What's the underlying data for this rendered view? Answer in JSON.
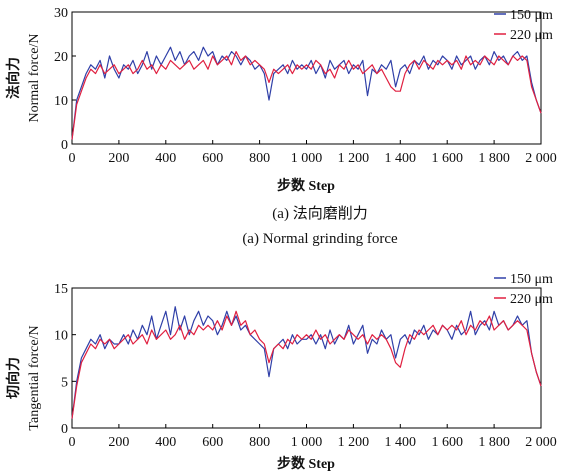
{
  "chart_data": [
    {
      "type": "line",
      "xlabel": "步数  Step",
      "ylabel_cn": "法向力",
      "ylabel_en": "Normal force/N",
      "caption_cn": "(a) 法向磨削力",
      "caption_en": "(a) Normal grinding force",
      "xlim": [
        0,
        2000
      ],
      "ylim": [
        0,
        30
      ],
      "xticks": [
        0,
        200,
        400,
        600,
        800,
        1000,
        1200,
        1400,
        1600,
        1800,
        2000
      ],
      "xtick_labels": [
        "0",
        "200",
        "400",
        "600",
        "800",
        "1 000",
        "1 200",
        "1 400",
        "1 600",
        "1 800",
        "2 000"
      ],
      "yticks": [
        0,
        10,
        20,
        30
      ],
      "ytick_labels": [
        "0",
        "10",
        "20",
        "30"
      ],
      "legend_position": "top-right",
      "grid": false,
      "series": [
        {
          "name": "150 μm",
          "color": "#3040a8",
          "x": [
            0,
            20,
            40,
            60,
            80,
            100,
            120,
            140,
            160,
            180,
            200,
            220,
            240,
            260,
            280,
            300,
            320,
            340,
            360,
            380,
            400,
            420,
            440,
            460,
            480,
            500,
            520,
            540,
            560,
            580,
            600,
            620,
            640,
            660,
            680,
            700,
            720,
            740,
            760,
            780,
            800,
            820,
            840,
            860,
            880,
            900,
            920,
            940,
            960,
            980,
            1000,
            1020,
            1040,
            1060,
            1080,
            1100,
            1120,
            1140,
            1160,
            1180,
            1200,
            1220,
            1240,
            1260,
            1280,
            1300,
            1320,
            1340,
            1360,
            1380,
            1400,
            1420,
            1440,
            1460,
            1480,
            1500,
            1520,
            1540,
            1560,
            1580,
            1600,
            1620,
            1640,
            1660,
            1680,
            1700,
            1720,
            1740,
            1760,
            1780,
            1800,
            1820,
            1840,
            1860,
            1880,
            1900,
            1920,
            1940,
            1960,
            1980,
            2000
          ],
          "values": [
            1,
            10,
            13,
            16,
            18,
            17,
            19,
            15,
            20,
            17,
            15,
            18,
            17,
            19,
            16,
            18,
            21,
            17,
            20,
            18,
            20,
            22,
            19,
            21,
            18,
            20,
            21,
            19,
            22,
            20,
            21,
            18,
            20,
            19,
            21,
            20,
            18,
            20,
            19,
            17,
            18,
            16,
            10,
            16,
            17,
            18,
            16,
            19,
            17,
            18,
            17,
            19,
            16,
            18,
            15,
            19,
            17,
            18,
            19,
            16,
            18,
            17,
            19,
            11,
            17,
            16,
            18,
            17,
            19,
            13,
            17,
            18,
            16,
            19,
            18,
            20,
            17,
            19,
            18,
            20,
            19,
            17,
            20,
            18,
            19,
            20,
            17,
            19,
            20,
            18,
            21,
            19,
            20,
            18,
            20,
            21,
            19,
            20,
            14,
            10,
            7
          ]
        },
        {
          "name": "220 μm",
          "color": "#e02040",
          "x": [
            0,
            20,
            40,
            60,
            80,
            100,
            120,
            140,
            160,
            180,
            200,
            220,
            240,
            260,
            280,
            300,
            320,
            340,
            360,
            380,
            400,
            420,
            440,
            460,
            480,
            500,
            520,
            540,
            560,
            580,
            600,
            620,
            640,
            660,
            680,
            700,
            720,
            740,
            760,
            780,
            800,
            820,
            840,
            860,
            880,
            900,
            920,
            940,
            960,
            980,
            1000,
            1020,
            1040,
            1060,
            1080,
            1100,
            1120,
            1140,
            1160,
            1180,
            1200,
            1220,
            1240,
            1260,
            1280,
            1300,
            1320,
            1340,
            1360,
            1380,
            1400,
            1420,
            1440,
            1460,
            1480,
            1500,
            1520,
            1540,
            1560,
            1580,
            1600,
            1620,
            1640,
            1660,
            1680,
            1700,
            1720,
            1740,
            1760,
            1780,
            1800,
            1820,
            1840,
            1860,
            1880,
            1900,
            1920,
            1940,
            1960,
            1980,
            2000
          ],
          "values": [
            1,
            9,
            12,
            15,
            17,
            16,
            18,
            16,
            17,
            18,
            16,
            17,
            18,
            16,
            17,
            19,
            17,
            18,
            16,
            18,
            17,
            19,
            18,
            17,
            18,
            19,
            17,
            18,
            19,
            17,
            20,
            18,
            19,
            20,
            18,
            21,
            19,
            20,
            18,
            19,
            18,
            17,
            14,
            17,
            16,
            17,
            18,
            16,
            18,
            17,
            18,
            17,
            19,
            18,
            16,
            17,
            15,
            18,
            17,
            19,
            17,
            18,
            16,
            17,
            18,
            16,
            17,
            15,
            13,
            12,
            12,
            16,
            18,
            19,
            17,
            19,
            18,
            17,
            19,
            18,
            19,
            18,
            19,
            17,
            20,
            18,
            19,
            18,
            20,
            19,
            18,
            20,
            19,
            18,
            20,
            19,
            20,
            19,
            13,
            10,
            7
          ]
        }
      ]
    },
    {
      "type": "line",
      "xlabel": "步数  Step",
      "ylabel_cn": "切向力",
      "ylabel_en": "Tangential force/N",
      "xlim": [
        0,
        2000
      ],
      "ylim": [
        0,
        15
      ],
      "xticks": [
        0,
        200,
        400,
        600,
        800,
        1000,
        1200,
        1400,
        1600,
        1800,
        2000
      ],
      "xtick_labels": [
        "0",
        "200",
        "400",
        "600",
        "800",
        "1 000",
        "1 200",
        "1 400",
        "1 600",
        "1 800",
        "2 000"
      ],
      "yticks": [
        0,
        5,
        10,
        15
      ],
      "ytick_labels": [
        "0",
        "5",
        "10",
        "15"
      ],
      "legend_position": "top-right",
      "grid": false,
      "series": [
        {
          "name": "150 μm",
          "color": "#3040a8",
          "x": [
            0,
            20,
            40,
            60,
            80,
            100,
            120,
            140,
            160,
            180,
            200,
            220,
            240,
            260,
            280,
            300,
            320,
            340,
            360,
            380,
            400,
            420,
            440,
            460,
            480,
            500,
            520,
            540,
            560,
            580,
            600,
            620,
            640,
            660,
            680,
            700,
            720,
            740,
            760,
            780,
            800,
            820,
            840,
            860,
            880,
            900,
            920,
            940,
            960,
            980,
            1000,
            1020,
            1040,
            1060,
            1080,
            1100,
            1120,
            1140,
            1160,
            1180,
            1200,
            1220,
            1240,
            1260,
            1280,
            1300,
            1320,
            1340,
            1360,
            1380,
            1400,
            1420,
            1440,
            1460,
            1480,
            1500,
            1520,
            1540,
            1560,
            1580,
            1600,
            1620,
            1640,
            1660,
            1680,
            1700,
            1720,
            1740,
            1760,
            1780,
            1800,
            1820,
            1840,
            1860,
            1880,
            1900,
            1920,
            1940,
            1960,
            1980,
            2000
          ],
          "values": [
            1,
            5,
            7.5,
            8.5,
            9.5,
            9,
            10,
            8.5,
            9.5,
            9,
            9,
            10,
            9,
            10.5,
            9.5,
            11,
            10,
            12,
            9.5,
            11,
            12.5,
            10,
            13,
            10.5,
            12,
            10,
            11.5,
            12.5,
            11,
            12,
            11.5,
            10,
            11,
            12.5,
            11,
            12,
            10.5,
            11,
            10,
            9.5,
            9,
            8.5,
            5.5,
            8.5,
            9,
            9.5,
            8.5,
            10,
            9,
            9.5,
            9.5,
            10,
            9,
            10,
            8.5,
            10.5,
            9,
            10,
            9.5,
            11,
            9,
            10,
            11,
            8,
            9.5,
            9,
            10.5,
            9.5,
            10,
            7.5,
            9.5,
            10,
            9,
            10.5,
            10,
            11,
            9.5,
            10.5,
            10,
            11,
            10.5,
            9.5,
            11,
            10,
            10.5,
            12.5,
            10,
            11,
            11.5,
            10.5,
            12.5,
            11,
            11.5,
            10.5,
            11,
            12,
            11,
            11.5,
            8,
            6,
            4.5
          ]
        },
        {
          "name": "220 μm",
          "color": "#e02040",
          "x": [
            0,
            20,
            40,
            60,
            80,
            100,
            120,
            140,
            160,
            180,
            200,
            220,
            240,
            260,
            280,
            300,
            320,
            340,
            360,
            380,
            400,
            420,
            440,
            460,
            480,
            500,
            520,
            540,
            560,
            580,
            600,
            620,
            640,
            660,
            680,
            700,
            720,
            740,
            760,
            780,
            800,
            820,
            840,
            860,
            880,
            900,
            920,
            940,
            960,
            980,
            1000,
            1020,
            1040,
            1060,
            1080,
            1100,
            1120,
            1140,
            1160,
            1180,
            1200,
            1220,
            1240,
            1260,
            1280,
            1300,
            1320,
            1340,
            1360,
            1380,
            1400,
            1420,
            1440,
            1460,
            1480,
            1500,
            1520,
            1540,
            1560,
            1580,
            1600,
            1620,
            1640,
            1660,
            1680,
            1700,
            1720,
            1740,
            1760,
            1780,
            1800,
            1820,
            1840,
            1860,
            1880,
            1900,
            1920,
            1940,
            1960,
            1980,
            2000
          ],
          "values": [
            1,
            4.5,
            7,
            8,
            9,
            8.5,
            9.5,
            9,
            9.5,
            8.5,
            9,
            9.5,
            10,
            9,
            9.5,
            10,
            9,
            10.5,
            9.5,
            10,
            10.5,
            9.5,
            10,
            11,
            9.5,
            10.5,
            10,
            11,
            10.5,
            11,
            10.5,
            11.5,
            10.5,
            12,
            11,
            12.5,
            11,
            11.5,
            10,
            10.5,
            9.5,
            9,
            7,
            8.5,
            9,
            8.5,
            9.5,
            9,
            10,
            9.5,
            10,
            9.5,
            10.5,
            9.5,
            10,
            9,
            9.5,
            10,
            9.5,
            10.5,
            10,
            9.5,
            10,
            9,
            10,
            9.5,
            10,
            9.5,
            8.5,
            7,
            6.5,
            8.5,
            10,
            9.5,
            10.5,
            10,
            10.5,
            11,
            10,
            11,
            10.5,
            11,
            10.5,
            11.5,
            10,
            11,
            10.5,
            11.5,
            11,
            12,
            10.5,
            11,
            11.5,
            10.5,
            11,
            11.5,
            11,
            10.5,
            8,
            6,
            4.5
          ]
        }
      ]
    }
  ]
}
